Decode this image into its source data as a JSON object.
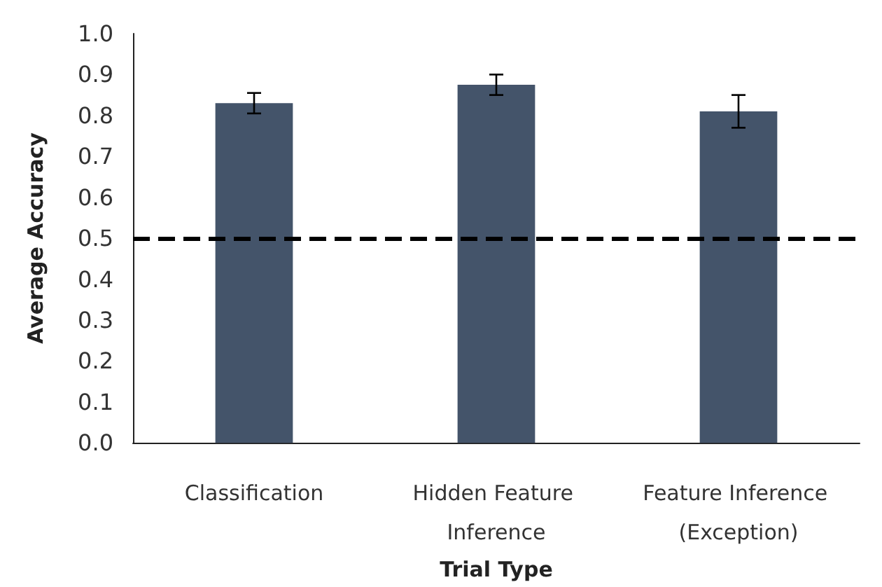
{
  "chart_data": {
    "type": "bar",
    "xlabel": "Trial Type",
    "ylabel": "Average Accuracy",
    "categories": [
      "Classification",
      "Hidden Feature Inference",
      "Feature Inference (Exception)"
    ],
    "values": [
      0.83,
      0.875,
      0.81
    ],
    "errors": [
      0.025,
      0.025,
      0.04
    ],
    "color": "#44546a",
    "ylim": [
      0,
      1
    ],
    "yticks": [
      {
        "value": 0,
        "label": "0.0"
      },
      {
        "value": 0.1,
        "label": "0.1"
      },
      {
        "value": 0.2,
        "label": "0.2"
      },
      {
        "value": 0.3,
        "label": "0.3"
      },
      {
        "value": 0.4,
        "label": "0.4"
      },
      {
        "value": 0.5,
        "label": "0.5"
      },
      {
        "value": 0.6,
        "label": "0.6"
      },
      {
        "value": 0.7,
        "label": "0.7"
      },
      {
        "value": 0.8,
        "label": "0.8"
      },
      {
        "value": 0.9,
        "label": "0.9"
      },
      {
        "value": 1,
        "label": "1.0"
      }
    ],
    "ref_lines": [
      {
        "axis": "y",
        "value": 0.5,
        "color": "#000000",
        "line_style": "dashed"
      }
    ],
    "grid": false
  }
}
